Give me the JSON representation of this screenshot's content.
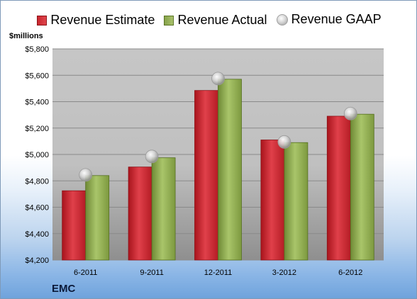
{
  "legend": {
    "estimate": "Revenue Estimate",
    "actual": "Revenue Actual",
    "gaap": "Revenue GAAP"
  },
  "unit_label": "$millions",
  "company": "EMC",
  "colors": {
    "estimate": "#cc2a33",
    "actual": "#92ad55",
    "gaap": "#c8c8c8"
  },
  "chart_data": {
    "type": "bar",
    "categories": [
      "6-2011",
      "9-2011",
      "12-2011",
      "3-2012",
      "6-2012"
    ],
    "series": [
      {
        "name": "Revenue Estimate",
        "values": [
          4725,
          4905,
          5485,
          5110,
          5290
        ]
      },
      {
        "name": "Revenue Actual",
        "values": [
          4840,
          4975,
          5570,
          5090,
          5305
        ]
      },
      {
        "name": "Revenue GAAP",
        "values": [
          4845,
          4985,
          5575,
          5095,
          5310
        ],
        "marker": "circle"
      }
    ],
    "ylabel": "$millions",
    "ylim": [
      4200,
      5800
    ],
    "yticks": [
      "$4,200",
      "$4,400",
      "$4,600",
      "$4,800",
      "$5,000",
      "$5,200",
      "$5,400",
      "$5,600",
      "$5,800"
    ],
    "ytick_values": [
      4200,
      4400,
      4600,
      4800,
      5000,
      5200,
      5400,
      5600,
      5800
    ],
    "grid": true,
    "legend_position": "top"
  }
}
